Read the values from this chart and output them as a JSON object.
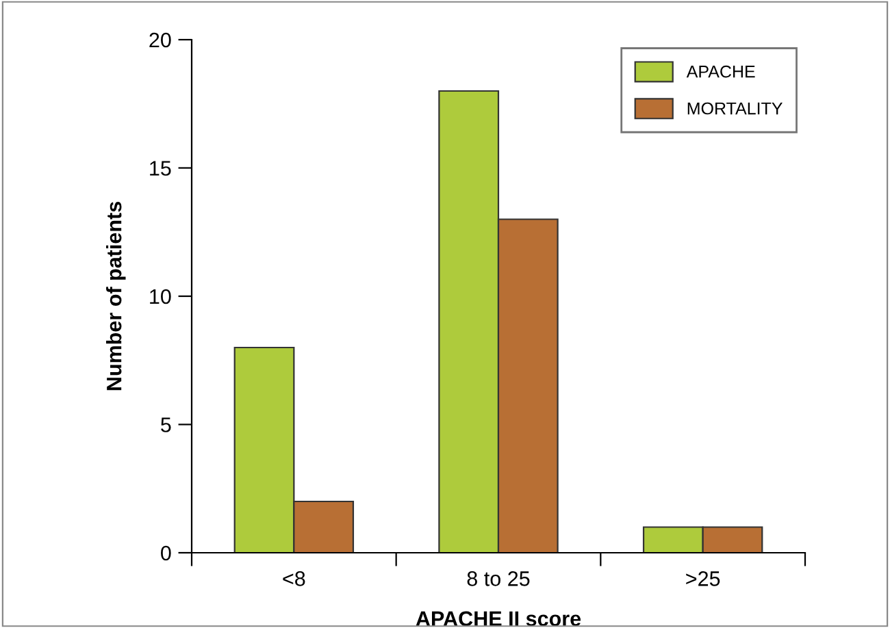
{
  "chart_data": {
    "type": "bar",
    "xlabel": "APACHE II score",
    "ylabel": "Number of patients",
    "categories": [
      "<8",
      "8 to 25",
      ">25"
    ],
    "series": [
      {
        "name": "APACHE",
        "color": "#aecb3c",
        "values": [
          8,
          18,
          1
        ]
      },
      {
        "name": "MORTALITY",
        "color": "#b86f34",
        "values": [
          2,
          13,
          1
        ]
      }
    ],
    "ylim": [
      0,
      20
    ],
    "yticks": [
      0,
      5,
      10,
      15,
      20
    ],
    "grid": false,
    "legend": "top right"
  }
}
